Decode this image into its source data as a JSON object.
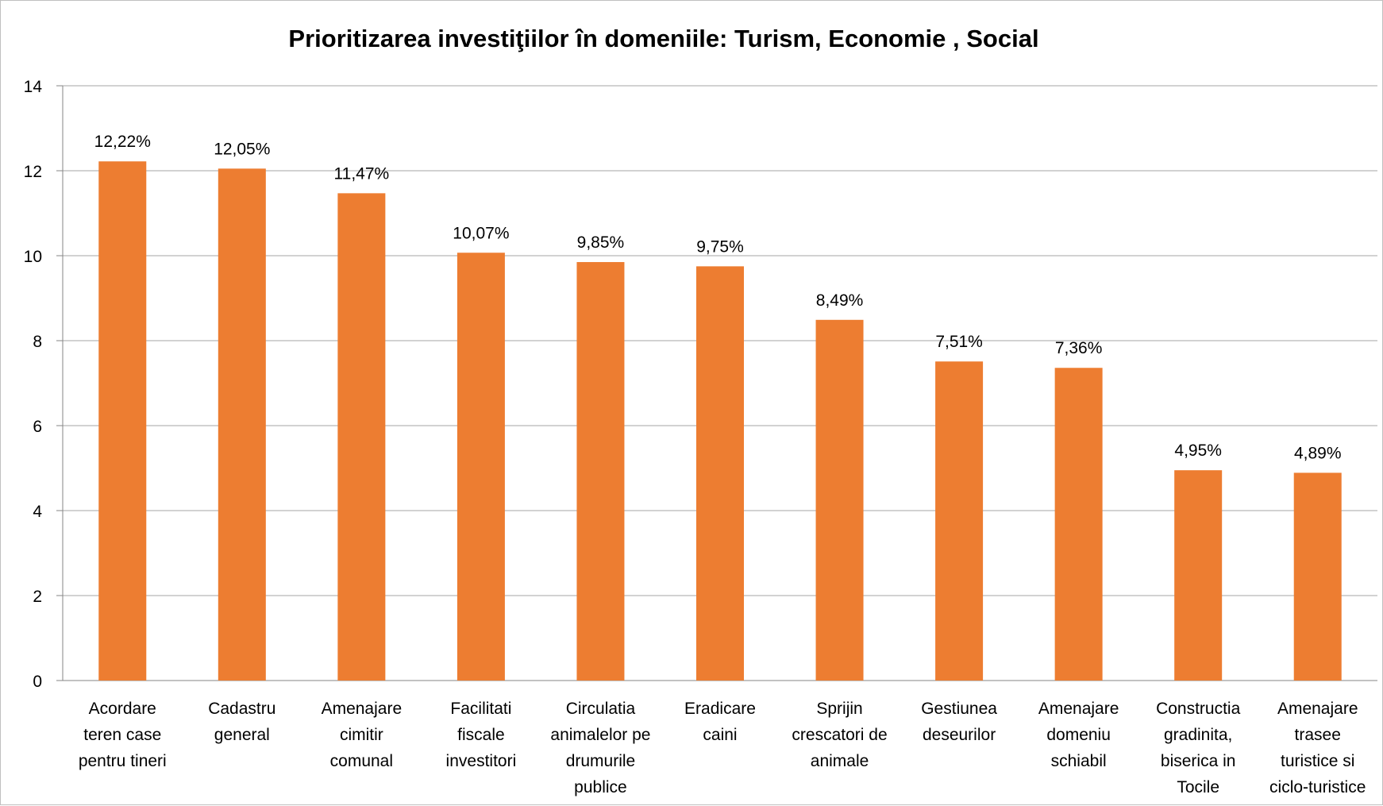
{
  "chart_data": {
    "type": "bar",
    "title": "Prioritizarea investiţiilor în domeniile: Turism, Economie , Social",
    "categories": [
      [
        "Acordare",
        "teren case",
        "pentru tineri"
      ],
      [
        "Cadastru",
        "general"
      ],
      [
        "Amenajare",
        "cimitir",
        "comunal"
      ],
      [
        "Facilitati",
        "fiscale",
        "investitori"
      ],
      [
        "Circulatia",
        "animalelor pe",
        "drumurile",
        "publice"
      ],
      [
        "Eradicare",
        "caini"
      ],
      [
        "Sprijin",
        "crescatori de",
        "animale"
      ],
      [
        "Gestiunea",
        "deseurilor"
      ],
      [
        "Amenajare",
        "domeniu",
        "schiabil"
      ],
      [
        "Constructia",
        "gradinita,",
        "biserica in",
        "Tocile"
      ],
      [
        "Amenajare",
        "trasee",
        "turistice si",
        "ciclo-turistice"
      ]
    ],
    "values": [
      12.22,
      12.05,
      11.47,
      10.07,
      9.85,
      9.75,
      8.49,
      7.51,
      7.36,
      4.95,
      4.89
    ],
    "data_labels": [
      "12,22%",
      "12,05%",
      "11,47%",
      "10,07%",
      "9,85%",
      "9,75%",
      "8,49%",
      "7,51%",
      "7,36%",
      "4,95%",
      "4,89%"
    ],
    "ylim": [
      0,
      14
    ],
    "yticks": [
      0,
      2,
      4,
      6,
      8,
      10,
      12,
      14
    ],
    "grid": true,
    "bar_color": "#ED7D31",
    "grid_color": "#A6A6A6",
    "xlabel": "",
    "ylabel": ""
  }
}
